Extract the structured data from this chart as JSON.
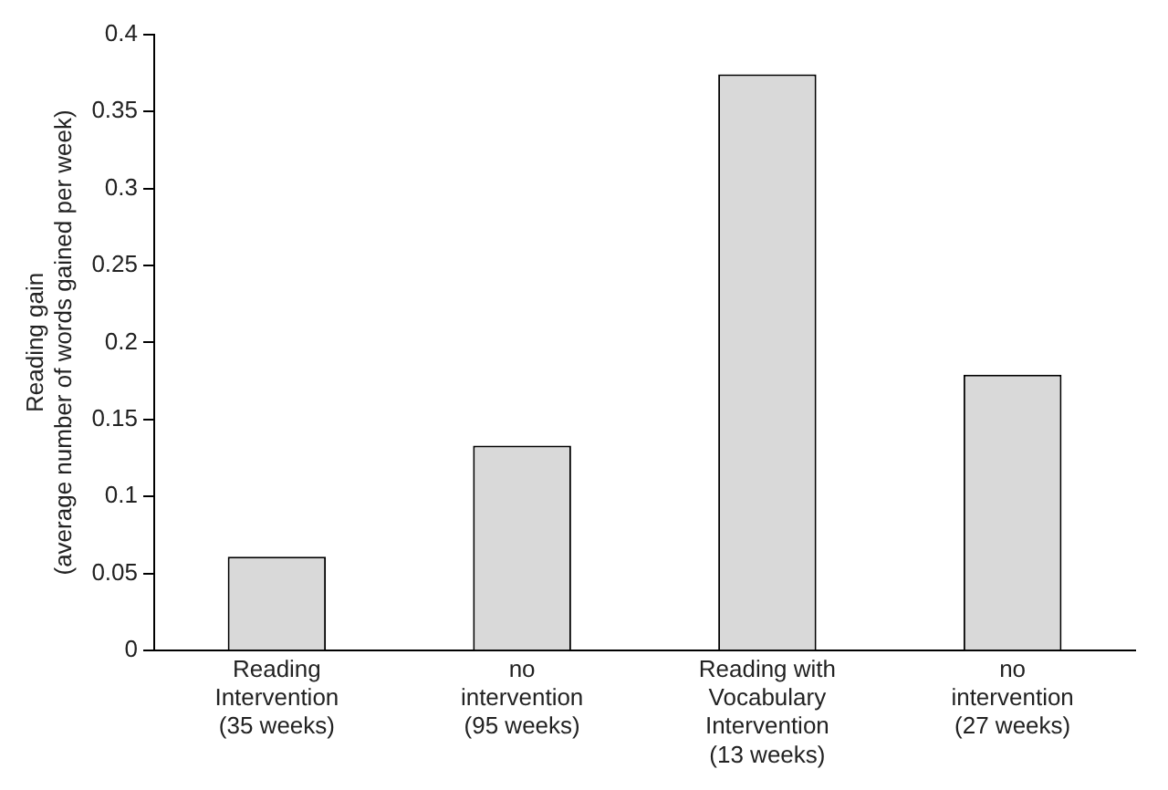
{
  "chart_data": {
    "type": "bar",
    "ylabel": "Reading gain\n(average number of words gained per week)",
    "categories": [
      "Reading\nIntervention\n(35 weeks)",
      "no\nintervention\n(95 weeks)",
      "Reading with\nVocabulary\nIntervention\n(13 weeks)",
      "no\nintervention\n(27 weeks)"
    ],
    "values": [
      0.061,
      0.133,
      0.374,
      0.179
    ],
    "color": "#d9d9d9",
    "ylim": [
      0,
      0.4
    ],
    "yticks": [
      0,
      0.05,
      0.1,
      0.15,
      0.2,
      0.25,
      0.3,
      0.35,
      0.4
    ],
    "grid": false,
    "legend": false
  }
}
